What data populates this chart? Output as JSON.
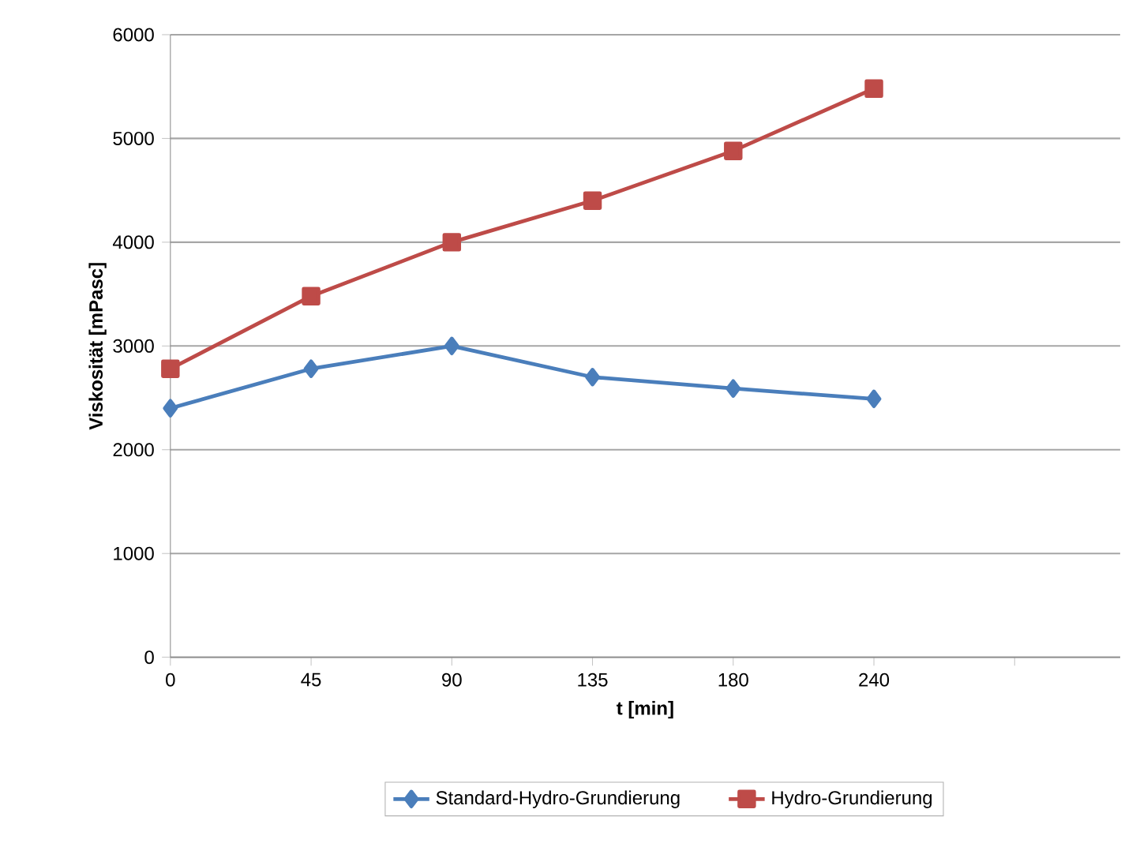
{
  "chart_data": {
    "type": "line",
    "xlabel": "t [min]",
    "ylabel": "Viskosität [mPasc]",
    "categories": [
      "0",
      "45",
      "90",
      "135",
      "180",
      "240",
      null
    ],
    "series": [
      {
        "name": "Standard-Hydro-Grundierung",
        "color": "#4a7ebb",
        "marker": "diamond",
        "values": [
          2400,
          2780,
          3000,
          2700,
          2590,
          2490,
          null
        ]
      },
      {
        "name": "Hydro-Grundierung",
        "color": "#be4b48",
        "marker": "square",
        "values": [
          2780,
          3480,
          4000,
          4400,
          4880,
          5480,
          null
        ]
      }
    ],
    "ylim": [
      0,
      6000
    ],
    "yticks": [
      0,
      1000,
      2000,
      3000,
      4000,
      5000,
      6000
    ],
    "grid": "y",
    "legend": "bottom",
    "line_style": "solid"
  }
}
